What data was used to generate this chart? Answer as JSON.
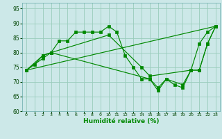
{
  "xlabel": "Humidité relative (%)",
  "bg_color": "#cce8e8",
  "grid_color": "#99ccbb",
  "line_color": "#008800",
  "xlim": [
    -0.5,
    23.5
  ],
  "ylim": [
    60,
    97
  ],
  "yticks": [
    60,
    65,
    70,
    75,
    80,
    85,
    90,
    95
  ],
  "xticks": [
    0,
    1,
    2,
    3,
    4,
    5,
    6,
    7,
    8,
    9,
    10,
    11,
    12,
    13,
    14,
    15,
    16,
    17,
    18,
    19,
    20,
    21,
    22,
    23
  ],
  "series": [
    {
      "x": [
        0,
        1,
        2,
        3,
        4,
        5,
        6,
        7,
        8,
        9,
        10,
        11,
        12,
        13,
        14,
        15,
        16,
        17,
        18,
        19,
        20,
        21,
        22,
        23
      ],
      "y": [
        74,
        76,
        79,
        80,
        84,
        84,
        87,
        87,
        87,
        87,
        89,
        87,
        79,
        75,
        71,
        71,
        67,
        71,
        69,
        68,
        74,
        83,
        87,
        89
      ]
    },
    {
      "x": [
        0,
        23
      ],
      "y": [
        74,
        89
      ]
    },
    {
      "x": [
        0,
        2,
        3,
        10,
        14,
        15,
        20,
        21,
        22,
        23
      ],
      "y": [
        74,
        79,
        80,
        86,
        75,
        72,
        74,
        74,
        83,
        89
      ]
    },
    {
      "x": [
        0,
        2,
        3,
        15,
        16,
        17,
        19,
        20,
        21,
        22,
        23
      ],
      "y": [
        74,
        78,
        80,
        71,
        68,
        71,
        69,
        74,
        74,
        83,
        89
      ]
    }
  ]
}
